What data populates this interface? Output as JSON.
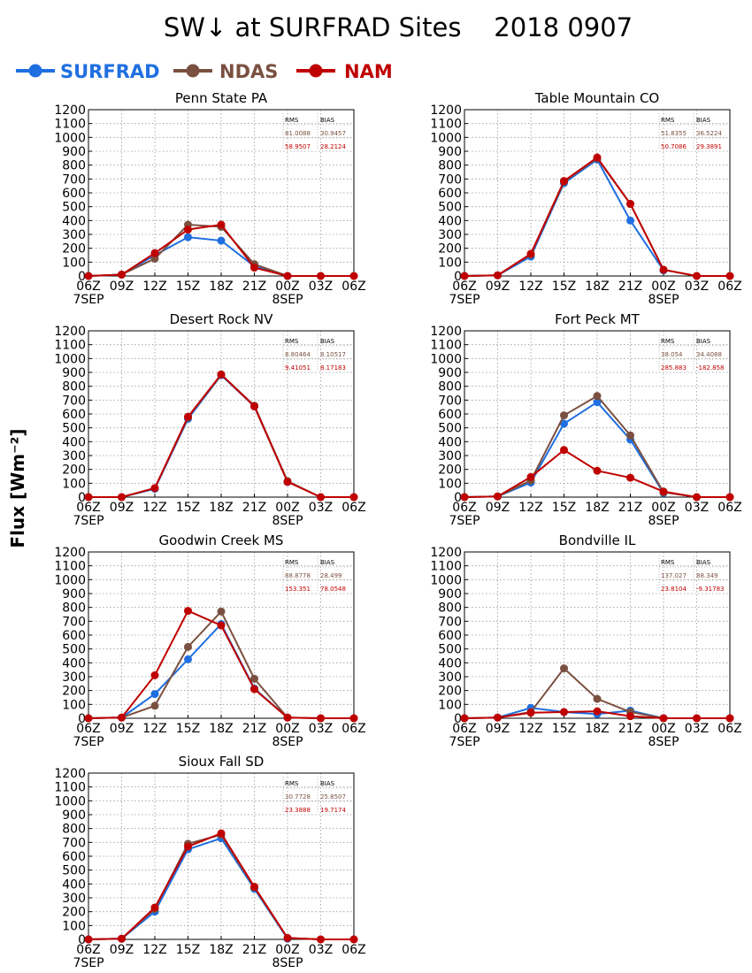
{
  "title": "SW↓ at SURFRAD Sites    2018 0907",
  "ylabel": "Flux [Wm⁻²]",
  "legend": [
    {
      "name": "SURFRAD",
      "color": "#1f6fe0"
    },
    {
      "name": "NDAS",
      "color": "#7a5040"
    },
    {
      "name": "NAM",
      "color": "#c00000"
    }
  ],
  "stats_headers": {
    "rms": "RMS",
    "bias": "BIAS"
  },
  "colors": {
    "ndas_stats": "#7a5040",
    "nam_stats": "#c00000",
    "grid": "#999999"
  },
  "chart_data": [
    {
      "type": "line",
      "title": "Penn State PA",
      "x": [
        "06Z",
        "09Z",
        "12Z",
        "15Z",
        "18Z",
        "21Z",
        "00Z",
        "03Z",
        "06Z"
      ],
      "date_labels": {
        "0": "7SEP",
        "6": "8SEP"
      },
      "ylim": [
        0,
        1200
      ],
      "yticks": [
        0,
        100,
        200,
        300,
        400,
        500,
        600,
        700,
        800,
        900,
        1000,
        1100,
        1200
      ],
      "grid": true,
      "stats": {
        "ndas": [
          "81.0088",
          "30.9457"
        ],
        "nam": [
          "58.9507",
          "28.2124"
        ]
      },
      "series": [
        {
          "name": "SURFRAD",
          "values": [
            0,
            10,
            150,
            280,
            255,
            70,
            0,
            null,
            null
          ]
        },
        {
          "name": "NDAS",
          "values": [
            0,
            10,
            125,
            370,
            355,
            85,
            0,
            0,
            0
          ]
        },
        {
          "name": "NAM",
          "values": [
            0,
            10,
            165,
            335,
            370,
            60,
            0,
            0,
            0
          ]
        }
      ]
    },
    {
      "type": "line",
      "title": "Table Mountain CO",
      "x": [
        "06Z",
        "09Z",
        "12Z",
        "15Z",
        "18Z",
        "21Z",
        "00Z",
        "03Z",
        "06Z"
      ],
      "date_labels": {
        "0": "7SEP",
        "6": "8SEP"
      },
      "ylim": [
        0,
        1200
      ],
      "yticks": [
        0,
        100,
        200,
        300,
        400,
        500,
        600,
        700,
        800,
        900,
        1000,
        1100,
        1200
      ],
      "grid": true,
      "stats": {
        "ndas": [
          "51.8355",
          "36.5224"
        ],
        "nam": [
          "50.7086",
          "29.3891"
        ]
      },
      "series": [
        {
          "name": "SURFRAD",
          "values": [
            0,
            5,
            140,
            670,
            840,
            400,
            40,
            null,
            null
          ]
        },
        {
          "name": "NDAS",
          "values": [
            0,
            5,
            155,
            680,
            850,
            520,
            45,
            0,
            0
          ]
        },
        {
          "name": "NAM",
          "values": [
            0,
            5,
            160,
            685,
            855,
            520,
            45,
            0,
            0
          ]
        }
      ]
    },
    {
      "type": "line",
      "title": "Desert Rock NV",
      "x": [
        "06Z",
        "09Z",
        "12Z",
        "15Z",
        "18Z",
        "21Z",
        "00Z",
        "03Z",
        "06Z"
      ],
      "date_labels": {
        "0": "7SEP",
        "6": "8SEP"
      },
      "ylim": [
        0,
        1200
      ],
      "yticks": [
        0,
        100,
        200,
        300,
        400,
        500,
        600,
        700,
        800,
        900,
        1000,
        1100,
        1200
      ],
      "grid": true,
      "stats": {
        "ndas": [
          "8.80464",
          "8.10517"
        ],
        "nam": [
          "9.41051",
          "8.17183"
        ]
      },
      "series": [
        {
          "name": "SURFRAD",
          "values": [
            0,
            0,
            60,
            565,
            880,
            655,
            110,
            null,
            null
          ]
        },
        {
          "name": "NDAS",
          "values": [
            0,
            0,
            65,
            575,
            885,
            660,
            115,
            0,
            0
          ]
        },
        {
          "name": "NAM",
          "values": [
            0,
            0,
            65,
            580,
            885,
            655,
            110,
            0,
            0
          ]
        }
      ]
    },
    {
      "type": "line",
      "title": "Fort Peck MT",
      "x": [
        "06Z",
        "09Z",
        "12Z",
        "15Z",
        "18Z",
        "21Z",
        "00Z",
        "03Z",
        "06Z"
      ],
      "date_labels": {
        "0": "7SEP",
        "6": "8SEP"
      },
      "ylim": [
        0,
        1200
      ],
      "yticks": [
        0,
        100,
        200,
        300,
        400,
        500,
        600,
        700,
        800,
        900,
        1000,
        1100,
        1200
      ],
      "grid": true,
      "stats": {
        "ndas": [
          "38.054",
          "34.4088"
        ],
        "nam": [
          "285.883",
          "-182.858"
        ]
      },
      "series": [
        {
          "name": "SURFRAD",
          "values": [
            0,
            5,
            105,
            530,
            685,
            415,
            30,
            null,
            null
          ]
        },
        {
          "name": "NDAS",
          "values": [
            0,
            5,
            120,
            590,
            730,
            445,
            35,
            0,
            0
          ]
        },
        {
          "name": "NAM",
          "values": [
            0,
            5,
            145,
            340,
            190,
            140,
            40,
            0,
            0
          ]
        }
      ]
    },
    {
      "type": "line",
      "title": "Goodwin Creek MS",
      "x": [
        "06Z",
        "09Z",
        "12Z",
        "15Z",
        "18Z",
        "21Z",
        "00Z",
        "03Z",
        "06Z"
      ],
      "date_labels": {
        "0": "7SEP",
        "6": "8SEP"
      },
      "ylim": [
        0,
        1200
      ],
      "yticks": [
        0,
        100,
        200,
        300,
        400,
        500,
        600,
        700,
        800,
        900,
        1000,
        1100,
        1200
      ],
      "grid": true,
      "stats": {
        "ndas": [
          "88.8778",
          "28.499"
        ],
        "nam": [
          "153.351",
          "78.0548"
        ]
      },
      "series": [
        {
          "name": "SURFRAD",
          "values": [
            0,
            5,
            175,
            425,
            680,
            215,
            5,
            null,
            null
          ]
        },
        {
          "name": "NDAS",
          "values": [
            0,
            5,
            90,
            515,
            770,
            285,
            5,
            0,
            0
          ]
        },
        {
          "name": "NAM",
          "values": [
            0,
            5,
            310,
            775,
            670,
            210,
            5,
            0,
            0
          ]
        }
      ]
    },
    {
      "type": "line",
      "title": "Bondville IL",
      "x": [
        "06Z",
        "09Z",
        "12Z",
        "15Z",
        "18Z",
        "21Z",
        "00Z",
        "03Z",
        "06Z"
      ],
      "date_labels": {
        "0": "7SEP",
        "6": "8SEP"
      },
      "ylim": [
        0,
        1200
      ],
      "yticks": [
        0,
        100,
        200,
        300,
        400,
        500,
        600,
        700,
        800,
        900,
        1000,
        1100,
        1200
      ],
      "grid": true,
      "stats": {
        "ndas": [
          "137.027",
          "88.349"
        ],
        "nam": [
          "23.8104",
          "-9.31783"
        ]
      },
      "series": [
        {
          "name": "SURFRAD",
          "values": [
            0,
            5,
            75,
            45,
            30,
            55,
            0,
            null,
            null
          ]
        },
        {
          "name": "NDAS",
          "values": [
            0,
            5,
            45,
            360,
            140,
            45,
            0,
            0,
            0
          ]
        },
        {
          "name": "NAM",
          "values": [
            0,
            5,
            40,
            45,
            50,
            15,
            0,
            0,
            0
          ]
        }
      ]
    },
    {
      "type": "line",
      "title": "Sioux Fall SD",
      "x": [
        "06Z",
        "09Z",
        "12Z",
        "15Z",
        "18Z",
        "21Z",
        "00Z",
        "03Z",
        "06Z"
      ],
      "date_labels": {
        "0": "7SEP",
        "6": "8SEP"
      },
      "ylim": [
        0,
        1200
      ],
      "yticks": [
        0,
        100,
        200,
        300,
        400,
        500,
        600,
        700,
        800,
        900,
        1000,
        1100,
        1200
      ],
      "grid": true,
      "stats": {
        "ndas": [
          "30.7728",
          "25.8507"
        ],
        "nam": [
          "23.3888",
          "19.7174"
        ]
      },
      "series": [
        {
          "name": "SURFRAD",
          "values": [
            0,
            5,
            200,
            650,
            730,
            365,
            5,
            null,
            null
          ]
        },
        {
          "name": "NDAS",
          "values": [
            0,
            5,
            220,
            690,
            755,
            375,
            10,
            0,
            0
          ]
        },
        {
          "name": "NAM",
          "values": [
            0,
            5,
            230,
            670,
            765,
            380,
            10,
            0,
            0
          ]
        }
      ]
    }
  ]
}
